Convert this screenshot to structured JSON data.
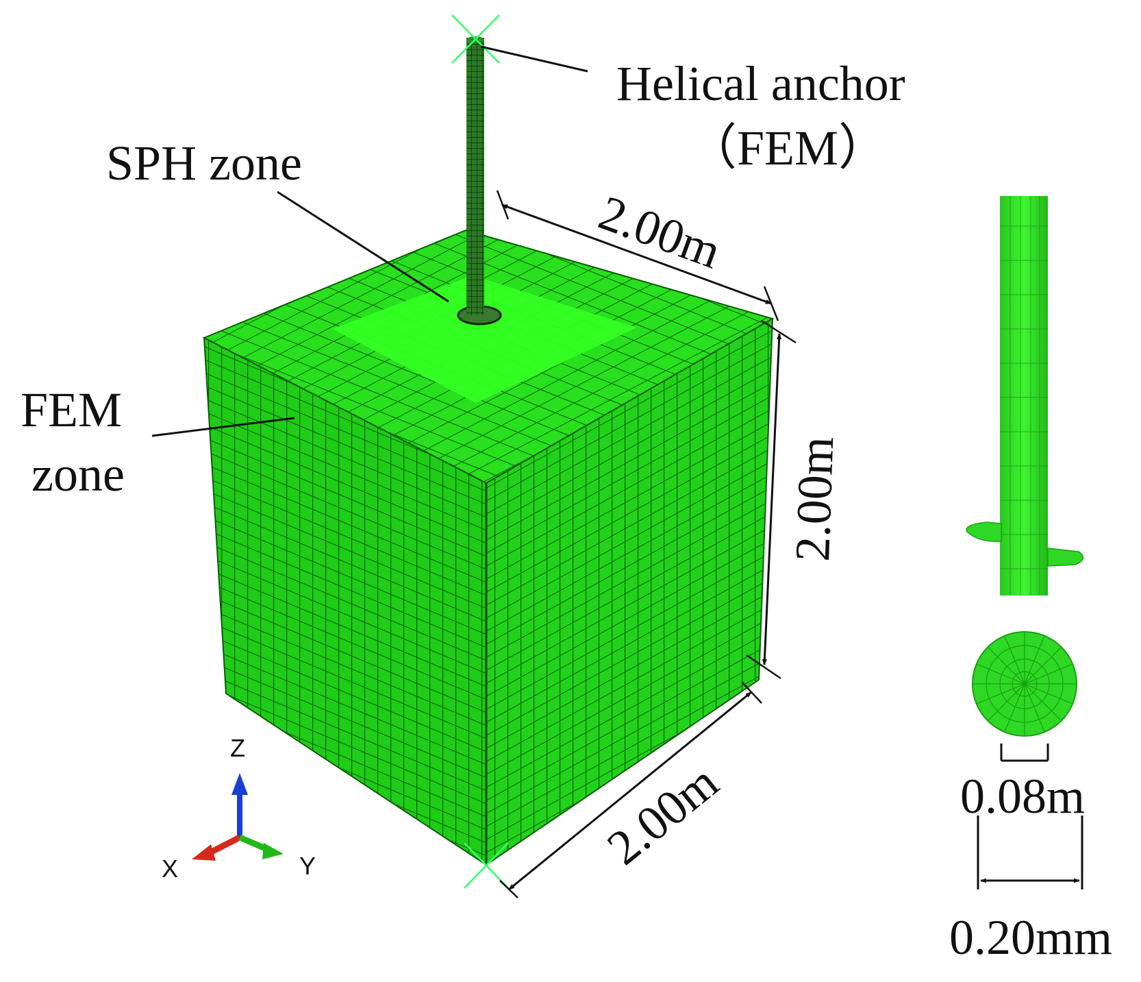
{
  "labels": {
    "helical_anchor": "Helical anchor",
    "helical_anchor_sub": "（FEM）",
    "sph_zone": "SPH zone",
    "fem_zone_line1": "FEM",
    "fem_zone_line2": "zone"
  },
  "dimensions": {
    "top_edge": "2.00m",
    "vertical_edge": "2.00m",
    "bottom_edge": "2.00m",
    "shaft_diameter": "0.08m",
    "helix_diameter": "0.20mm"
  },
  "axes": {
    "x": "X",
    "y": "Y",
    "z": "Z"
  },
  "colors": {
    "mesh_green": "#22d61a",
    "mesh_dark": "#0c6a0a",
    "sph_green": "#33ff22",
    "axis_x": "#d42a1c",
    "axis_y": "#22b81a",
    "axis_z": "#1a3fd4",
    "marker": "#33ff66"
  }
}
